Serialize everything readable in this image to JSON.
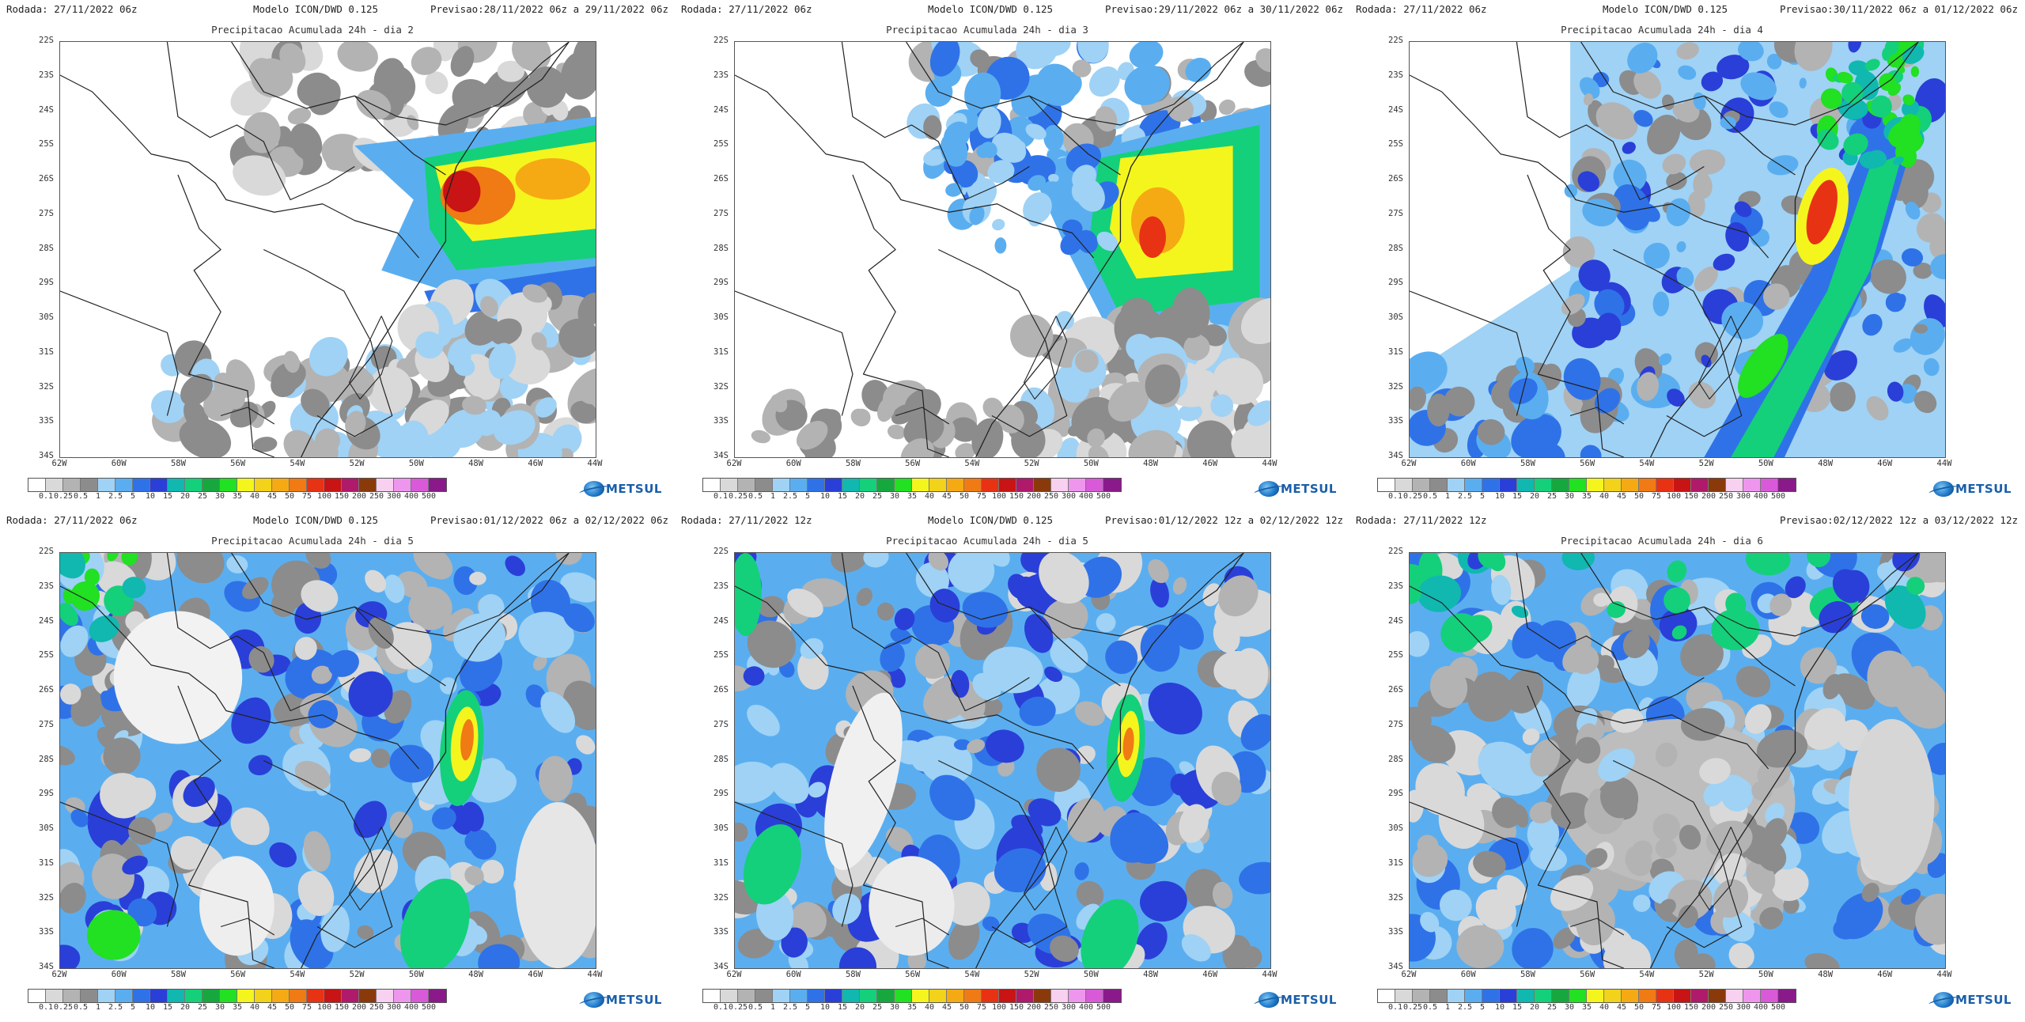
{
  "colorbar": {
    "labels": [
      "0.1",
      "0.25",
      "0.5",
      "1",
      "2.5",
      "5",
      "10",
      "15",
      "20",
      "25",
      "30",
      "35",
      "40",
      "45",
      "50",
      "75",
      "100",
      "150",
      "200",
      "250",
      "300",
      "400",
      "500"
    ],
    "colors": [
      "#ffffff",
      "#d9d9d9",
      "#b3b3b3",
      "#8c8c8c",
      "#9fd2f5",
      "#5aaef0",
      "#2f72e8",
      "#2a3fd8",
      "#10b8b0",
      "#14d07a",
      "#16a83e",
      "#22e022",
      "#f5f51e",
      "#f2d21a",
      "#f5aa14",
      "#f07a14",
      "#e83214",
      "#c81414",
      "#b01a6a",
      "#8a3a0a",
      "#f8d0f0",
      "#ee96ee",
      "#d85ad8",
      "#8a1a8a"
    ]
  },
  "logo": {
    "name": "METSUL"
  },
  "panels": [
    {
      "id": "p1",
      "rodada": "Rodada: 27/11/2022 06z",
      "modelo": "Modelo ICON/DWD 0.125",
      "previsao": "Previsao:28/11/2022 06z a 29/11/2022 06z",
      "titulo": "Precipitacao Acumulada 24h - dia 2"
    },
    {
      "id": "p2",
      "rodada": "Rodada: 27/11/2022 06z",
      "modelo": "Modelo ICON/DWD 0.125",
      "previsao": "Previsao:29/11/2022 06z a 30/11/2022 06z",
      "titulo": "Precipitacao Acumulada 24h - dia 3"
    },
    {
      "id": "p3",
      "rodada": "Rodada: 27/11/2022 06z",
      "modelo": "Modelo ICON/DWD 0.125",
      "previsao": "Previsao:30/11/2022 06z a 01/12/2022 06z",
      "titulo": "Precipitacao Acumulada 24h - dia 4"
    },
    {
      "id": "p4",
      "rodada": "Rodada: 27/11/2022 06z",
      "modelo": "Modelo ICON/DWD 0.125",
      "previsao": "Previsao:01/12/2022 06z a 02/12/2022 06z",
      "titulo": "Precipitacao Acumulada 24h - dia 5"
    },
    {
      "id": "p5",
      "rodada": "Rodada: 27/11/2022 12z",
      "modelo": "Modelo ICON/DWD 0.125",
      "previsao": "Previsao:01/12/2022 12z a 02/12/2022 12z",
      "titulo": "Precipitacao Acumulada 24h - dia 5"
    },
    {
      "id": "p6",
      "rodada": "Rodada: 27/11/2022 12z",
      "modelo": "",
      "previsao": "Previsao:02/12/2022 12z a 03/12/2022 12z",
      "titulo": "Precipitacao Acumulada 24h - dia 6"
    }
  ],
  "axes": {
    "lat_labels": [
      "22S",
      "23S",
      "24S",
      "25S",
      "26S",
      "27S",
      "28S",
      "29S",
      "30S",
      "31S",
      "32S",
      "33S",
      "34S"
    ],
    "lon_labels": [
      "62W",
      "60W",
      "58W",
      "56W",
      "54W",
      "52W",
      "50W",
      "48W",
      "46W",
      "44W"
    ]
  }
}
